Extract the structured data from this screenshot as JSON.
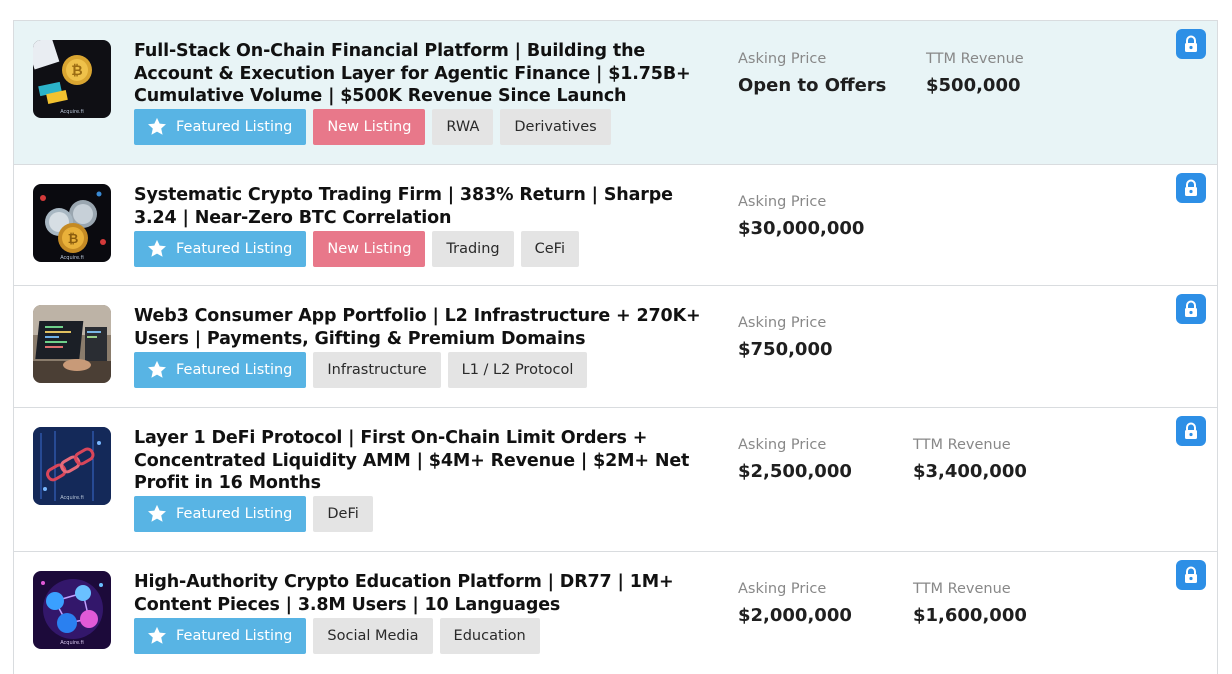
{
  "listings": [
    {
      "title": "Full-Stack On-Chain Financial Platform | Building the Account & Execution Layer for Agentic Finance | $1.75B+ Cumulative Volume | $500K Revenue Since Launch",
      "thumbnail_icon": "gold-bitcoin-coin-icon",
      "tags": [
        "Featured Listing",
        "New Listing",
        "RWA",
        "Derivatives"
      ],
      "asking_price_label": "Asking Price",
      "asking_price": "Open to Offers",
      "revenue_label": "TTM Revenue",
      "revenue": "$500,000"
    },
    {
      "title": "Systematic Crypto Trading Firm | 383% Return | Sharpe 3.24 | Near-Zero BTC Correlation",
      "thumbnail_icon": "crypto-coins-icon",
      "tags": [
        "Featured Listing",
        "New Listing",
        "Trading",
        "CeFi"
      ],
      "asking_price_label": "Asking Price",
      "asking_price": "$30,000,000"
    },
    {
      "title": "Web3 Consumer App Portfolio | L2 Infrastructure + 270K+ Users | Payments, Gifting & Premium Domains",
      "thumbnail_icon": "laptop-code-icon",
      "tags": [
        "Featured Listing",
        "Infrastructure",
        "L1 / L2 Protocol"
      ],
      "asking_price_label": "Asking Price",
      "asking_price": "$750,000"
    },
    {
      "title": "Layer 1 DeFi Protocol | First On-Chain Limit Orders + Concentrated Liquidity AMM | $4M+ Revenue | $2M+ Net Profit in 16 Months",
      "thumbnail_icon": "blockchain-chain-icon",
      "tags": [
        "Featured Listing",
        "DeFi"
      ],
      "asking_price_label": "Asking Price",
      "asking_price": "$2,500,000",
      "revenue_label": "TTM Revenue",
      "revenue": "$3,400,000"
    },
    {
      "title": "High-Authority Crypto Education Platform | DR77 | 1M+ Content Pieces | 3.8M Users | 10 Languages",
      "thumbnail_icon": "crypto-network-icon",
      "tags": [
        "Featured Listing",
        "Social Media",
        "Education"
      ],
      "asking_price_label": "Asking Price",
      "asking_price": "$2,000,000",
      "revenue_label": "TTM Revenue",
      "revenue": "$1,600,000"
    }
  ],
  "colors": {
    "featured": "#58b4e4",
    "new": "#e8788a",
    "tag": "#e4e4e4",
    "lock": "#2d8fe6",
    "highlight_row": "#e8f4f6"
  }
}
